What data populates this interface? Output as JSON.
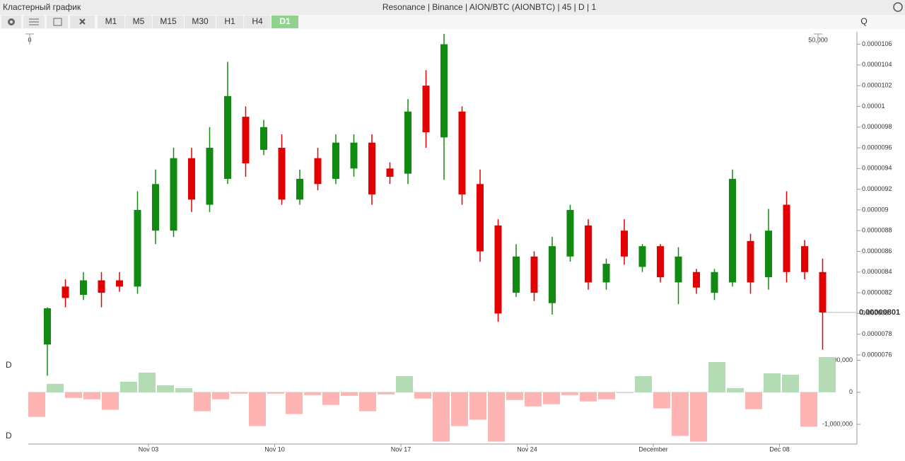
{
  "header": {
    "title": "Кластерный график",
    "instrument": "Resonance | Binance | AION/BTC (AIONBTC) | 45 | D | 1"
  },
  "toolbar": {
    "timeframes": [
      "M1",
      "M5",
      "M15",
      "M30",
      "H1",
      "H4",
      "D1"
    ],
    "active": 6,
    "search": "Q"
  },
  "chart_data": [
    {
      "type": "candlestick",
      "label": "D",
      "x": [
        0,
        1,
        2,
        3,
        4,
        5,
        6,
        7,
        8,
        9,
        10,
        11,
        12,
        13,
        14,
        15,
        16,
        17,
        18,
        19,
        20,
        21,
        22,
        23,
        24,
        25,
        26,
        27,
        28,
        29,
        30,
        31,
        32,
        33,
        34,
        35,
        36,
        37,
        38,
        39,
        40,
        41,
        42,
        43
      ],
      "high": [
        8.06e-06,
        8.33e-06,
        8.4e-06,
        8.4e-06,
        8.4e-06,
        9.18e-06,
        9.39e-06,
        9.6e-06,
        9.6e-06,
        9.8e-06,
        1.043e-05,
        1e-05,
        9.87e-06,
        9.73e-06,
        9.39e-06,
        9.6e-06,
        9.73e-06,
        9.73e-06,
        9.73e-06,
        9.46e-06,
        1.007e-05,
        1.035e-05,
        1.07e-05,
        1e-05,
        9.39e-06,
        8.91e-06,
        8.67e-06,
        8.6e-06,
        8.74e-06,
        9.05e-06,
        8.91e-06,
        8.53e-06,
        8.91e-06,
        8.67e-06,
        8.67e-06,
        8.64e-06,
        8.43e-06,
        8.43e-06,
        9.39e-06,
        8.77e-06,
        9.01e-06,
        9.18e-06,
        8.71e-06,
        8.53e-06
      ],
      "low": [
        7.4e-06,
        8.06e-06,
        8.13e-06,
        8.06e-06,
        8.21e-06,
        8.19e-06,
        8.67e-06,
        8.74e-06,
        8.98e-06,
        8.98e-06,
        9.25e-06,
        9.32e-06,
        9.53e-06,
        9.05e-06,
        9.05e-06,
        9.19e-06,
        9.25e-06,
        9.32e-06,
        9.05e-06,
        9.25e-06,
        9.25e-06,
        9.6e-06,
        9.29e-06,
        9.05e-06,
        8.5e-06,
        7.92e-06,
        8.16e-06,
        8.12e-06,
        7.99e-06,
        8.5e-06,
        8.23e-06,
        8.23e-06,
        8.47e-06,
        8.4e-06,
        8.3e-06,
        8.09e-06,
        8.19e-06,
        8.13e-06,
        8.26e-06,
        8.19e-06,
        8.23e-06,
        8.3e-06,
        8.33e-06,
        7.65e-06
      ],
      "open": [
        7.7e-06,
        8.26e-06,
        8.18e-06,
        8.32e-06,
        8.32e-06,
        8.26e-06,
        8.8e-06,
        8.8e-06,
        9.5e-06,
        9.05e-06,
        9.3e-06,
        9.9e-06,
        9.58e-06,
        9.6e-06,
        9.1e-06,
        9.5e-06,
        9.3e-06,
        9.4e-06,
        9.65e-06,
        9.4e-06,
        9.35e-06,
        1.02e-05,
        9.7e-06,
        9.95e-06,
        9.25e-06,
        8.85e-06,
        8.2e-06,
        8.55e-06,
        8.1e-06,
        8.55e-06,
        8.85e-06,
        8.3e-06,
        8.8e-06,
        8.45e-06,
        8.65e-06,
        8.3e-06,
        8.4e-06,
        8.2e-06,
        8.3e-06,
        8.7e-06,
        8.35e-06,
        9.05e-06,
        8.65e-06,
        8.4e-06
      ],
      "close": [
        8.05e-06,
        8.15e-06,
        8.32e-06,
        8.2e-06,
        8.26e-06,
        9e-06,
        9.25e-06,
        9.5e-06,
        9.1e-06,
        9.6e-06,
        1.01e-05,
        9.45e-06,
        9.8e-06,
        9.1e-06,
        9.3e-06,
        9.25e-06,
        9.65e-06,
        9.65e-06,
        9.15e-06,
        9.32e-06,
        9.95e-06,
        9.75e-06,
        1.06e-05,
        9.15e-06,
        8.6e-06,
        8e-06,
        8.55e-06,
        8.2e-06,
        8.65e-06,
        9e-06,
        8.3e-06,
        8.48e-06,
        8.55e-06,
        8.65e-06,
        8.35e-06,
        8.55e-06,
        8.25e-06,
        8.4e-06,
        9.3e-06,
        8.3e-06,
        8.8e-06,
        8.4e-06,
        8.4e-06,
        8.01e-06
      ],
      "up_color": "#128a12",
      "down_color": "#e30000",
      "xlim": [
        -1,
        43.6
      ],
      "xticks": [
        {
          "value": 6,
          "label": "Nov 03"
        },
        {
          "value": 13,
          "label": "Nov 10"
        },
        {
          "value": 20,
          "label": "Nov 17"
        },
        {
          "value": 27,
          "label": "Nov 24"
        },
        {
          "value": 34,
          "label": "December"
        },
        {
          "value": 41,
          "label": "Dec 08"
        }
      ],
      "ylim": [
        7.504e-06,
        1.072e-05
      ],
      "yticks": [
        7.6e-06,
        7.8e-06,
        8e-06,
        8.2e-06,
        8.4e-06,
        8.6e-06,
        8.8e-06,
        9e-06,
        9.2e-06,
        9.4e-06,
        9.6e-06,
        9.8e-06,
        1e-05,
        1.02e-05,
        1.04e-05,
        1.06e-05
      ],
      "current_price": 8.01e-06,
      "volume_scale": [
        0,
        {
          "value": 50000,
          "label": "50,000"
        }
      ]
    },
    {
      "type": "bar",
      "label": "D",
      "values": [
        -770000,
        264000,
        -176000,
        -220000,
        -550000,
        330000,
        615000,
        220000,
        132000,
        -593000,
        -220000,
        -44000,
        -1055000,
        -44000,
        -681000,
        -88000,
        -396000,
        -110000,
        -593000,
        -66000,
        505000,
        -198000,
        -1540000,
        -1055000,
        -857000,
        -1540000,
        -242000,
        -440000,
        -374000,
        -88000,
        -286000,
        -220000,
        -22000,
        505000,
        -505000,
        -1363000,
        -1540000,
        945000,
        132000,
        -527000,
        593000,
        549000,
        -1077000,
        1099000
      ],
      "up_color": "#b4dcb4",
      "down_color": "#ffb4b4",
      "ylim": [
        -1550000,
        1100000
      ],
      "yticks": [
        {
          "value": 1000000,
          "label": "1,000,000"
        },
        0,
        {
          "value": -1000000,
          "label": "-1,000,000"
        }
      ]
    }
  ]
}
